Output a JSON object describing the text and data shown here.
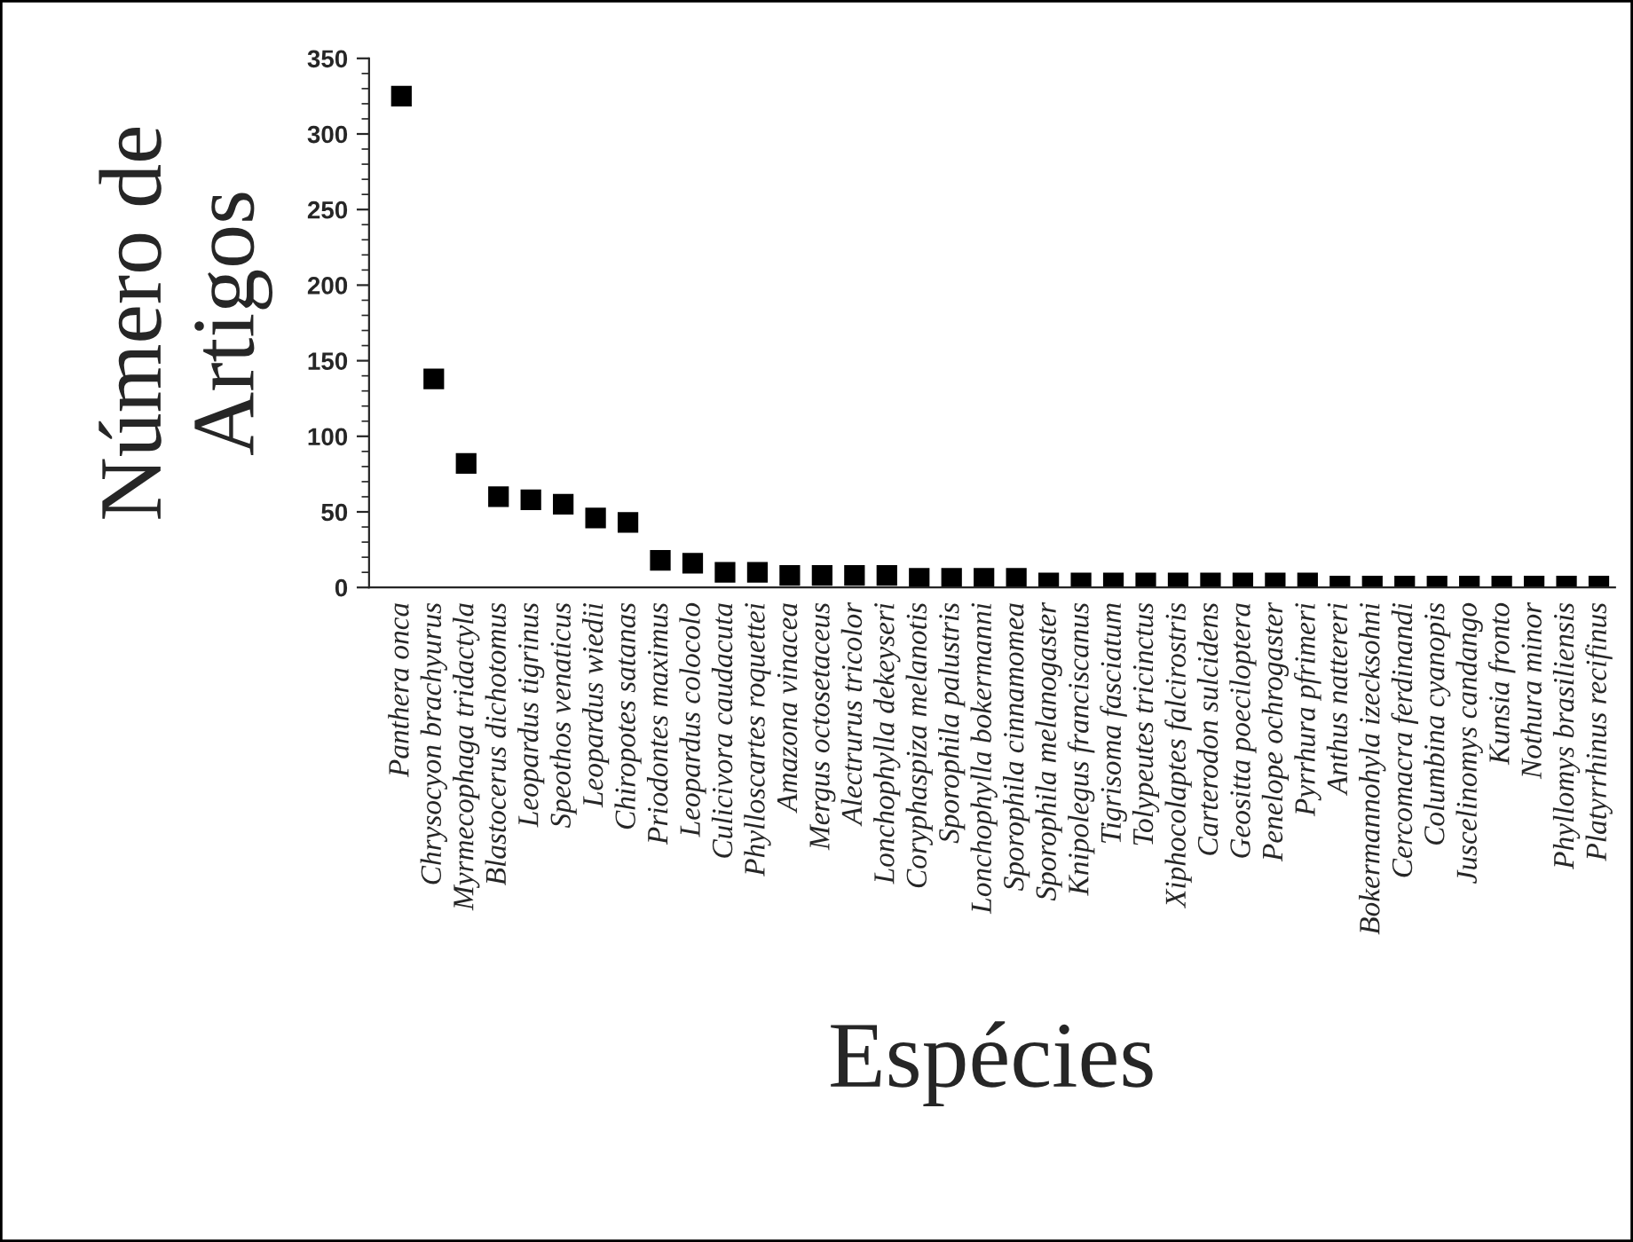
{
  "chart_data": {
    "type": "scatter",
    "xlabel": "Espécies",
    "ylabel": "Número de\nArtigos",
    "categories": [
      "Panthera onca",
      "Chrysocyon brachyurus",
      "Myrmecophaga tridactyla",
      "Blastocerus dichotomus",
      "Leopardus tigrinus",
      "Speothos venaticus",
      "Leopardus wiedii",
      "Chiropotes satanas",
      "Priodontes maximus",
      "Leopardus colocolo",
      "Culicivora caudacuta",
      "Phylloscartes roquettei",
      "Amazona vinacea",
      "Mergus octosetaceus",
      "Alectrurus tricolor",
      "Lonchophylla dekeyseri",
      "Coryphaspiza melanotis",
      "Sporophila palustris",
      "Lonchophylla bokermanni",
      "Sporophila cinnamomea",
      "Sporophila melanogaster",
      "Knipolegus franciscanus",
      "Tigrisoma fasciatum",
      "Tolypeutes tricinctus",
      "Xiphocolaptes falcirostris",
      "Carterodon sulcidens",
      "Geositta poeciloptera",
      "Penelope ochrogaster",
      "Pyrrhura pfrimeri",
      "Anthus nattereri",
      "Bokermannohyla izecksohni",
      "Cercomacra ferdinandi",
      "Columbina cyanopis",
      "Juscelinomys candango",
      "Kunsia fronto",
      "Nothura minor",
      "Phyllomys brasiliensis",
      "Platyrrhinus recifinus"
    ],
    "series": [
      {
        "color": "#000000",
        "values": [
          325,
          138,
          82,
          60,
          58,
          55,
          46,
          43,
          18,
          16,
          10,
          10,
          8,
          8,
          8,
          8,
          6,
          6,
          6,
          6,
          3,
          3,
          3,
          3,
          3,
          3,
          3,
          3,
          3,
          1,
          1,
          1,
          1,
          1,
          1,
          1,
          1,
          1
        ]
      }
    ],
    "ylim": [
      0,
      350
    ],
    "yticks": [
      0,
      50,
      100,
      150,
      200,
      250,
      300,
      350
    ],
    "marker": "square",
    "grid": false,
    "legend": false
  }
}
